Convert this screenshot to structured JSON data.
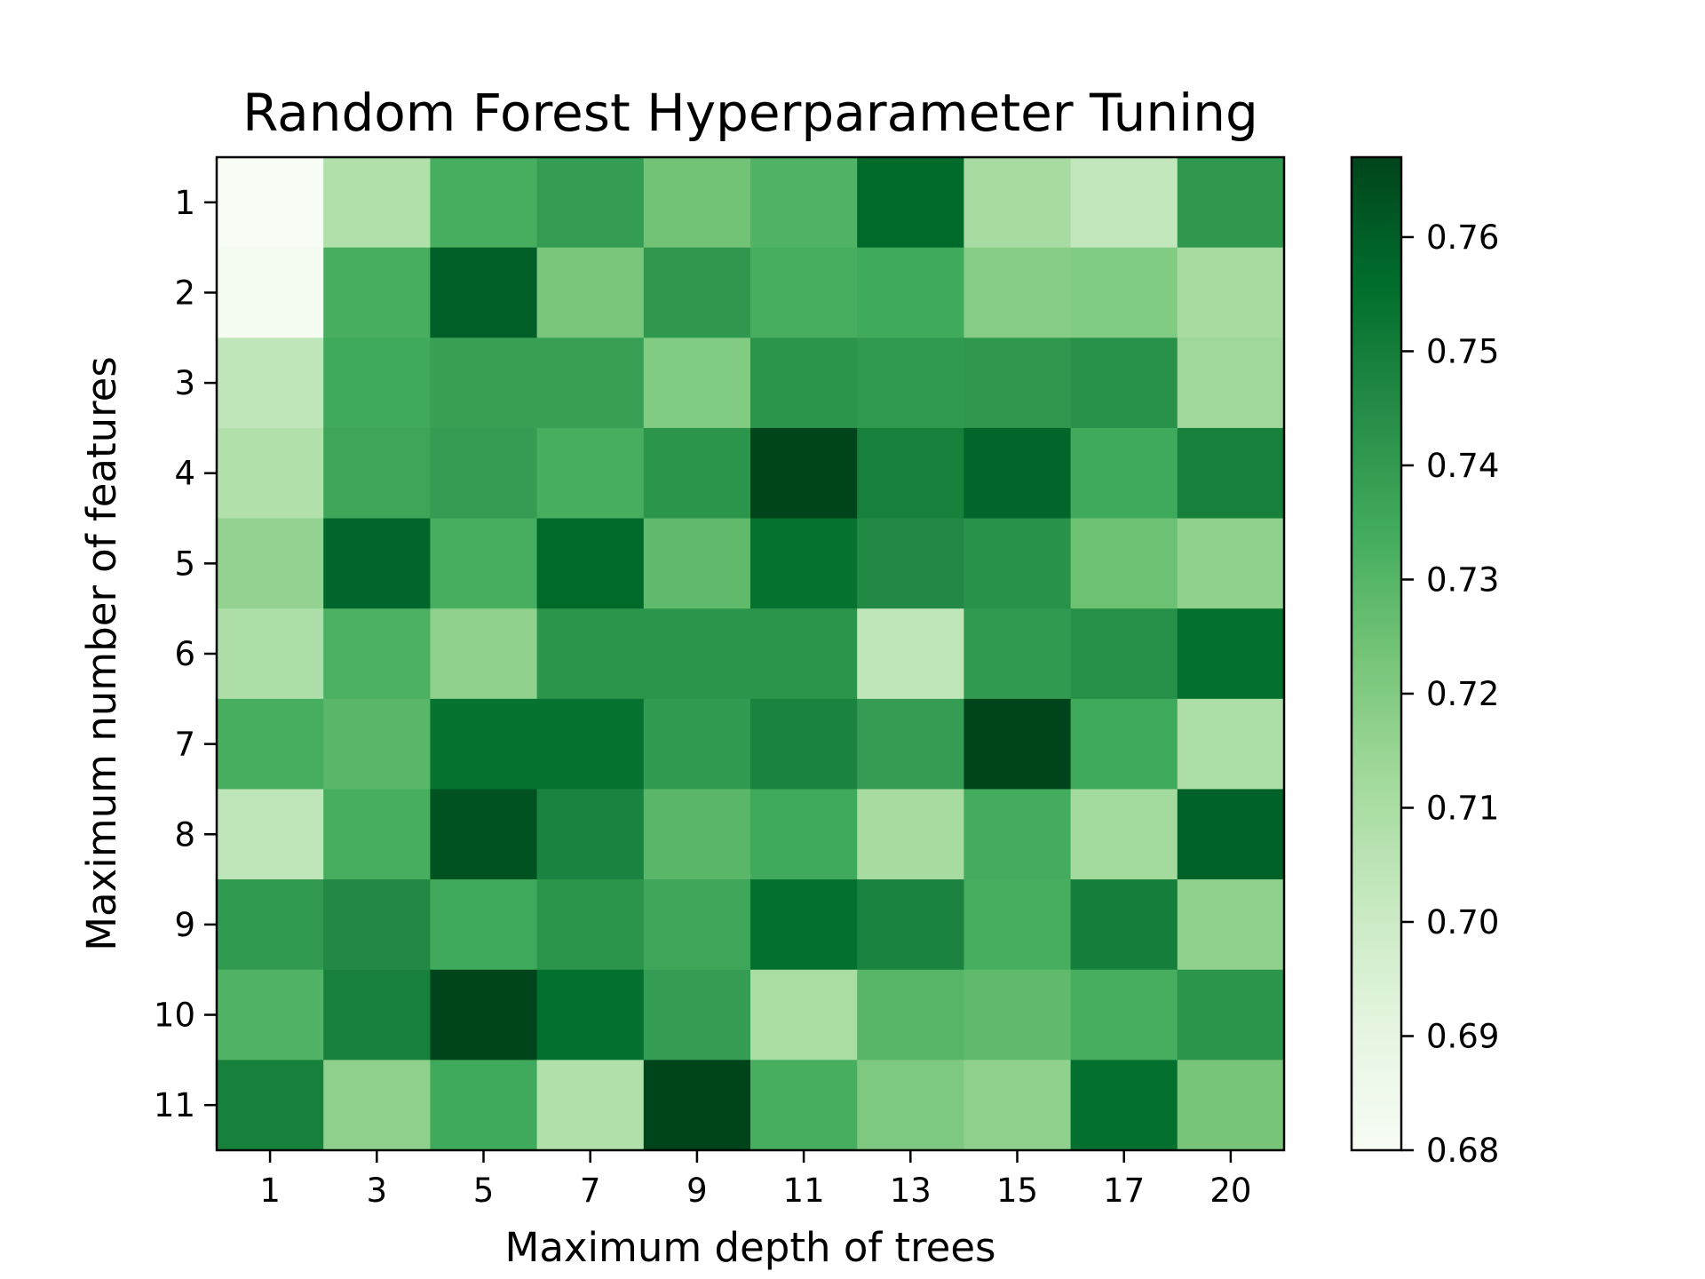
{
  "chart_data": {
    "type": "heatmap",
    "title": "Random Forest Hyperparameter Tuning",
    "xlabel": "Maximum depth of trees",
    "ylabel": "Maximum number of features",
    "x_categories": [
      "1",
      "3",
      "5",
      "7",
      "9",
      "11",
      "13",
      "15",
      "17",
      "20"
    ],
    "y_categories": [
      "1",
      "2",
      "3",
      "4",
      "5",
      "6",
      "7",
      "8",
      "9",
      "10",
      "11"
    ],
    "values": [
      [
        0.68,
        0.708,
        0.733,
        0.739,
        0.724,
        0.731,
        0.757,
        0.711,
        0.703,
        0.741
      ],
      [
        0.682,
        0.733,
        0.76,
        0.722,
        0.741,
        0.733,
        0.735,
        0.719,
        0.72,
        0.711
      ],
      [
        0.704,
        0.735,
        0.738,
        0.738,
        0.72,
        0.742,
        0.74,
        0.741,
        0.743,
        0.713
      ],
      [
        0.708,
        0.736,
        0.739,
        0.733,
        0.742,
        0.767,
        0.749,
        0.758,
        0.735,
        0.749
      ],
      [
        0.716,
        0.758,
        0.733,
        0.757,
        0.728,
        0.754,
        0.746,
        0.743,
        0.725,
        0.717
      ],
      [
        0.709,
        0.732,
        0.717,
        0.742,
        0.742,
        0.742,
        0.704,
        0.74,
        0.744,
        0.755
      ],
      [
        0.733,
        0.729,
        0.754,
        0.754,
        0.74,
        0.748,
        0.739,
        0.767,
        0.735,
        0.709
      ],
      [
        0.704,
        0.733,
        0.763,
        0.748,
        0.729,
        0.735,
        0.711,
        0.734,
        0.712,
        0.759
      ],
      [
        0.74,
        0.746,
        0.735,
        0.742,
        0.736,
        0.755,
        0.748,
        0.733,
        0.75,
        0.717
      ],
      [
        0.731,
        0.749,
        0.767,
        0.755,
        0.739,
        0.71,
        0.73,
        0.728,
        0.733,
        0.742
      ],
      [
        0.749,
        0.717,
        0.735,
        0.708,
        0.767,
        0.733,
        0.721,
        0.717,
        0.755,
        0.723
      ]
    ],
    "colormap": "Greens",
    "vmin": 0.68,
    "vmax": 0.767,
    "colorbar_ticks": [
      "0.68",
      "0.69",
      "0.70",
      "0.71",
      "0.72",
      "0.73",
      "0.74",
      "0.75",
      "0.76"
    ],
    "grid": false
  }
}
